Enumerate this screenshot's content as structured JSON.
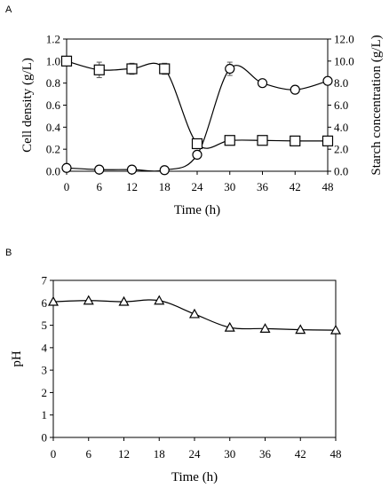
{
  "chart_data": [
    {
      "panel": "A",
      "type": "line",
      "xlabel": "Time (h)",
      "ylabel": "Cell density (g/L)",
      "ylabel_right": "Starch concentration (g/L)",
      "x": [
        0,
        6,
        12,
        18,
        24,
        30,
        36,
        42,
        48
      ],
      "x_ticks": [
        "0",
        "6",
        "12",
        "18",
        "24",
        "30",
        "36",
        "42",
        "48"
      ],
      "xlim": [
        0,
        48
      ],
      "ylim": [
        0,
        1.2
      ],
      "ylim_right": [
        0,
        12
      ],
      "y_ticks": [
        "0.0",
        "0.2",
        "0.4",
        "0.6",
        "0.8",
        "1.0",
        "1.2"
      ],
      "y_ticks_right": [
        "0.0",
        "2.0",
        "4.0",
        "6.0",
        "8.0",
        "10.0",
        "12.0"
      ],
      "series": [
        {
          "marker": "circle",
          "axis": "left",
          "values": [
            0.03,
            0.015,
            0.015,
            0.01,
            0.15,
            0.93,
            0.8,
            0.74,
            0.82
          ],
          "errors": [
            0,
            0,
            0,
            0,
            0.02,
            0.06,
            0.02,
            0.02,
            0.02
          ]
        },
        {
          "marker": "square",
          "axis": "right",
          "values": [
            10.0,
            9.2,
            9.3,
            9.3,
            2.5,
            2.8,
            2.8,
            2.75,
            2.75
          ],
          "errors": [
            0.3,
            0.7,
            0.5,
            0.5,
            0.4,
            0.1,
            0.1,
            0.1,
            0.1
          ]
        }
      ]
    },
    {
      "panel": "B",
      "type": "line",
      "xlabel": "Time (h)",
      "ylabel": "pH",
      "x": [
        0,
        6,
        12,
        18,
        24,
        30,
        36,
        42,
        48
      ],
      "x_ticks": [
        "0",
        "6",
        "12",
        "18",
        "24",
        "30",
        "36",
        "42",
        "48"
      ],
      "xlim": [
        0,
        48
      ],
      "ylim": [
        0,
        7
      ],
      "y_ticks": [
        "0",
        "1",
        "2",
        "3",
        "4",
        "5",
        "6",
        "7"
      ],
      "series": [
        {
          "marker": "triangle",
          "axis": "left",
          "values": [
            6.05,
            6.1,
            6.05,
            6.1,
            5.5,
            4.9,
            4.85,
            4.8,
            4.78
          ],
          "errors": [
            0,
            0,
            0,
            0,
            0,
            0,
            0,
            0.05,
            0
          ]
        }
      ]
    }
  ]
}
